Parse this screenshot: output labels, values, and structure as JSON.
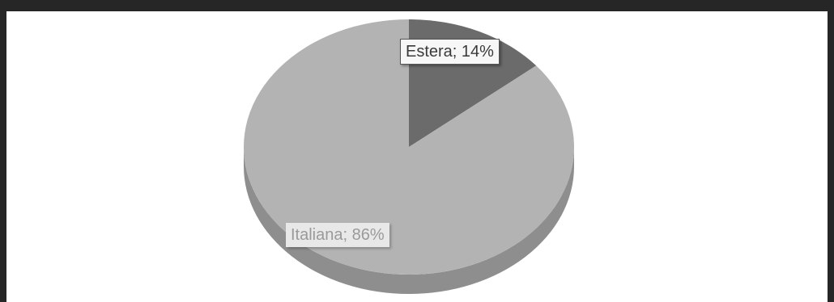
{
  "chart_data": {
    "type": "pie",
    "style": "3d",
    "slices": [
      {
        "name": "Estera",
        "value": 14,
        "color": "#6b6b6b",
        "side_color": "#4f4f4f"
      },
      {
        "name": "Italiana",
        "value": 86,
        "color": "#b3b3b3",
        "side_color": "#8e8e8e"
      }
    ],
    "data_labels": {
      "estera": "Estera; 14%",
      "italiana": "Italiana; 86%"
    },
    "legend": false
  },
  "colors": {
    "page_background": "#262626",
    "chart_background": "#ffffff"
  }
}
